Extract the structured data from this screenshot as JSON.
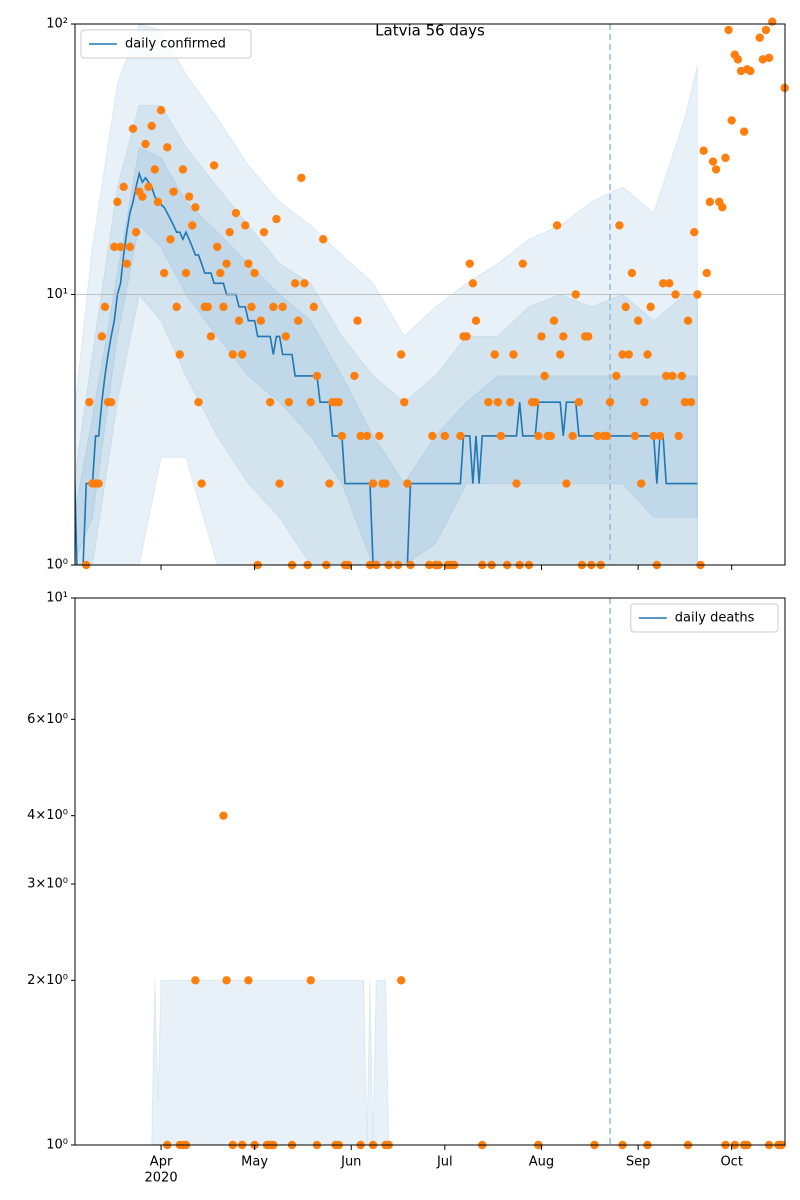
{
  "chart_data": [
    {
      "type": "line",
      "title": "Latvia 56 days",
      "log_y": true,
      "grid": true,
      "legend": "upper left",
      "xlim": [
        64.4,
        292.1
      ],
      "xticks": [
        92,
        122,
        153,
        183,
        214,
        245,
        275
      ],
      "xtick_labels": false,
      "ylim": [
        1,
        100
      ],
      "yticks": [
        {
          "value": 1,
          "label": "10⁰"
        },
        {
          "value": 10,
          "label": "10¹"
        },
        {
          "value": 100,
          "label": "10²"
        }
      ],
      "vline": 236,
      "vline_color": "#8fbbd9",
      "band_color": "#1f77b4",
      "band_opacity": 0.1,
      "bands": [
        {
          "x": [
            64,
            70,
            78,
            85,
            92,
            100,
            110,
            120,
            130,
            140,
            150,
            160,
            170,
            180,
            190,
            200,
            210,
            220,
            230,
            240,
            250,
            260,
            264
          ],
          "upper": [
            3.5,
            15,
            60,
            100,
            95,
            65,
            45,
            30,
            22,
            18,
            14,
            11,
            7,
            9,
            11,
            13,
            16,
            18,
            22,
            25,
            20,
            45,
            70
          ],
          "lower": [
            1,
            1,
            1,
            1,
            2.5,
            2.5,
            1,
            1,
            1,
            1,
            1,
            1,
            1,
            1,
            1,
            1,
            1,
            1,
            1,
            1,
            1,
            1,
            1
          ]
        },
        {
          "x": [
            64,
            70,
            78,
            85,
            92,
            100,
            110,
            120,
            130,
            140,
            150,
            160,
            170,
            180,
            190,
            200,
            210,
            220,
            230,
            240,
            250,
            260,
            264
          ],
          "upper": [
            2,
            6,
            25,
            50,
            50,
            35,
            25,
            18,
            13,
            11,
            7,
            5,
            4,
            5,
            7,
            7,
            9,
            10,
            9,
            10,
            8,
            10,
            10
          ],
          "lower": [
            1,
            1,
            4,
            10,
            8,
            5,
            3,
            2,
            1.5,
            1,
            1,
            1,
            1,
            1,
            1,
            1,
            1,
            1,
            1,
            1,
            1,
            1,
            1
          ]
        },
        {
          "x": [
            64,
            70,
            78,
            85,
            92,
            100,
            110,
            120,
            130,
            140,
            150,
            160,
            170,
            180,
            190,
            200,
            210,
            220,
            230,
            240,
            250,
            260,
            264
          ],
          "upper": [
            1.5,
            3.5,
            12,
            35,
            32,
            22,
            17,
            13,
            10,
            8,
            5,
            3,
            2,
            3,
            4,
            5,
            5,
            5,
            5,
            5,
            5,
            5,
            5
          ],
          "lower": [
            1,
            1.5,
            7,
            18,
            15,
            10,
            7,
            5,
            4,
            3,
            2,
            1,
            1,
            1.2,
            2,
            2,
            2,
            2,
            2,
            2,
            1.5,
            1.5,
            1.5
          ]
        }
      ],
      "series": [
        {
          "name": "daily confirmed",
          "color": "#1f77b4",
          "x": [
            64,
            65,
            67,
            68,
            70,
            71,
            72,
            73,
            74,
            75,
            76,
            77,
            78,
            79,
            80,
            81,
            82,
            83,
            84,
            85,
            86,
            87,
            88,
            89,
            90,
            91,
            93,
            94,
            95,
            96,
            97,
            98,
            99,
            100,
            101,
            102,
            103,
            104,
            105,
            106,
            108,
            109,
            112,
            113,
            116,
            117,
            119,
            120,
            122,
            123,
            127,
            128,
            129,
            130,
            131,
            134,
            135,
            142,
            143,
            146,
            147,
            150,
            151,
            159,
            160,
            171,
            172,
            188,
            189,
            191,
            192,
            193,
            194,
            195,
            206,
            207,
            208,
            212,
            213,
            220,
            221,
            222,
            225,
            226,
            250,
            251,
            252,
            253,
            254,
            264
          ],
          "values": [
            3,
            1,
            1,
            2,
            2,
            3,
            3,
            4,
            5,
            6,
            7,
            8,
            10,
            11,
            14,
            17,
            20,
            22,
            25,
            28,
            26,
            27,
            26,
            25,
            23,
            22,
            21,
            20,
            19,
            18,
            17,
            17,
            16,
            17,
            16,
            15,
            14,
            14,
            13,
            12,
            12,
            11,
            11,
            10,
            10,
            9,
            9,
            8,
            8,
            7,
            7,
            6,
            7,
            7,
            6,
            6,
            5,
            5,
            4,
            4,
            3,
            3,
            2,
            2,
            1,
            1,
            2,
            2,
            3,
            3,
            2,
            3,
            2,
            3,
            3,
            4,
            3,
            3,
            4,
            4,
            3,
            4,
            4,
            3,
            3,
            2,
            3,
            3,
            2,
            2
          ]
        }
      ],
      "points": {
        "color": "#ff7f0e",
        "x": [
          68,
          69,
          70,
          71,
          72,
          73,
          74,
          75,
          76,
          77,
          78,
          79,
          80,
          81,
          82,
          83,
          84,
          85,
          86,
          87,
          88,
          89,
          90,
          91,
          92,
          93,
          94,
          95,
          96,
          97,
          98,
          99,
          100,
          101,
          102,
          103,
          104,
          105,
          106,
          107,
          108,
          109,
          110,
          111,
          112,
          113,
          114,
          115,
          116,
          117,
          118,
          119,
          120,
          121,
          122,
          123,
          124,
          125,
          127,
          128,
          129,
          130,
          131,
          132,
          133,
          134,
          135,
          136,
          137,
          138,
          139,
          140,
          141,
          142,
          144,
          145,
          146,
          147,
          148,
          149,
          150,
          151,
          152,
          154,
          155,
          156,
          158,
          159,
          160,
          161,
          162,
          163,
          164,
          165,
          168,
          169,
          170,
          171,
          172,
          178,
          179,
          180,
          181,
          183,
          184,
          185,
          186,
          188,
          189,
          190,
          191,
          192,
          193,
          195,
          197,
          198,
          199,
          200,
          201,
          203,
          204,
          205,
          206,
          207,
          208,
          210,
          211,
          212,
          213,
          214,
          215,
          216,
          217,
          218,
          219,
          220,
          221,
          222,
          224,
          225,
          226,
          227,
          228,
          229,
          230,
          232,
          233,
          234,
          235,
          236,
          238,
          239,
          240,
          241,
          242,
          243,
          244,
          245,
          246,
          247,
          248,
          249,
          250,
          251,
          252,
          253,
          254,
          255,
          256,
          257,
          258,
          259,
          260,
          261,
          262,
          263,
          264,
          265,
          266,
          267,
          268,
          269,
          270,
          271,
          272,
          273,
          274,
          275,
          276,
          277,
          278,
          279,
          280,
          281,
          284,
          285,
          286,
          287,
          288,
          292
        ],
        "values": [
          1,
          4,
          2,
          2,
          2,
          7,
          9,
          4,
          4,
          15,
          22,
          15,
          25,
          13,
          15,
          41,
          17,
          24,
          23,
          36,
          25,
          42,
          29,
          22,
          48,
          12,
          35,
          16,
          24,
          9,
          6,
          29,
          12,
          23,
          18,
          21,
          4,
          2,
          9,
          9,
          7,
          30,
          15,
          12,
          9,
          13,
          17,
          6,
          20,
          8,
          6,
          18,
          13,
          9,
          12,
          1,
          8,
          17,
          4,
          9,
          19,
          2,
          9,
          7,
          4,
          1,
          11,
          8,
          27,
          11,
          1,
          4,
          9,
          5,
          16,
          1,
          2,
          4,
          4,
          4,
          3,
          1,
          1,
          5,
          8,
          3,
          3,
          1,
          2,
          1,
          3,
          2,
          2,
          1,
          1,
          6,
          4,
          2,
          1,
          1,
          3,
          1,
          1,
          3,
          1,
          1,
          1,
          3,
          7,
          7,
          13,
          11,
          8,
          1,
          4,
          1,
          6,
          4,
          3,
          1,
          4,
          6,
          2,
          1,
          13,
          1,
          4,
          4,
          3,
          7,
          5,
          3,
          3,
          8,
          18,
          6,
          7,
          2,
          3,
          10,
          4,
          1,
          7,
          7,
          1,
          3,
          1,
          3,
          3,
          4,
          5,
          18,
          6,
          9,
          6,
          12,
          3,
          8,
          2,
          4,
          6,
          9,
          3,
          1,
          3,
          11,
          5,
          11,
          5,
          10,
          3,
          5,
          4,
          8,
          4,
          17,
          10,
          1,
          34,
          12,
          22,
          31,
          29,
          22,
          21,
          32,
          95,
          44,
          77,
          74,
          67,
          40,
          68,
          67,
          89,
          74,
          95,
          75,
          102,
          58
        ]
      }
    },
    {
      "type": "line",
      "log_y": true,
      "grid": false,
      "legend": "upper right",
      "xlim": [
        64.4,
        292.1
      ],
      "xticks": [
        {
          "value": 92,
          "label": "Apr"
        },
        {
          "value": 122,
          "label": "May"
        },
        {
          "value": 153,
          "label": "Jun"
        },
        {
          "value": 183,
          "label": "Jul"
        },
        {
          "value": 214,
          "label": "Aug"
        },
        {
          "value": 245,
          "label": "Sep"
        },
        {
          "value": 275,
          "label": "Oct"
        }
      ],
      "xtick_labels": true,
      "x_year": "2020",
      "ylim": [
        1,
        10
      ],
      "yticks": [
        {
          "value": 1,
          "label": "10⁰"
        },
        {
          "value": 2,
          "label": "2×10⁰"
        },
        {
          "value": 3,
          "label": "3×10⁰"
        },
        {
          "value": 4,
          "label": "4×10⁰"
        },
        {
          "value": 6,
          "label": "6×10⁰"
        },
        {
          "value": 10,
          "label": "10¹"
        }
      ],
      "vline": 236,
      "vline_color": "#8fbbd9",
      "band_color": "#1f77b4",
      "band_opacity": 0.1,
      "bands": [
        {
          "x": [
            89,
            90,
            91,
            92,
            157,
            158,
            159,
            160,
            161,
            162,
            164,
            165
          ],
          "upper": [
            1,
            2,
            1.2,
            2,
            2,
            1,
            2,
            1,
            2,
            2,
            2,
            1
          ],
          "lower": [
            1,
            1,
            1,
            1,
            1,
            1,
            1,
            1,
            1,
            1,
            1,
            1
          ]
        }
      ],
      "series": [
        {
          "name": "daily deaths",
          "color": "#1f77b4"
        }
      ],
      "points": {
        "color": "#ff7f0e",
        "x": [
          94,
          98,
          99,
          100,
          103,
          112,
          113,
          115,
          118,
          120,
          122,
          126,
          127,
          128,
          134,
          140,
          142,
          148,
          149,
          156,
          160,
          164,
          165,
          169,
          195,
          213,
          231,
          240,
          248,
          261,
          273,
          276,
          279,
          280,
          287,
          290,
          291
        ],
        "values": [
          1,
          1,
          1,
          1,
          2,
          4,
          2,
          1,
          1,
          2,
          1,
          1,
          1,
          1,
          1,
          2,
          1,
          1,
          1,
          1,
          1,
          1,
          1,
          2,
          1,
          1,
          1,
          1,
          1,
          1,
          1,
          1,
          1,
          1,
          1,
          1,
          1
        ]
      }
    }
  ]
}
